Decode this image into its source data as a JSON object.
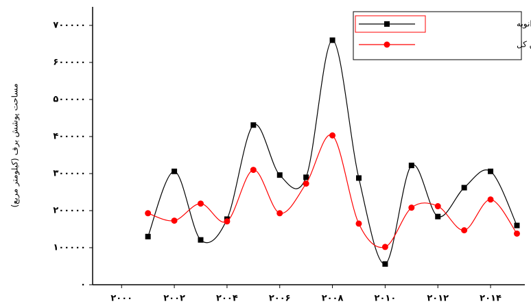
{
  "chart_data": {
    "type": "line",
    "y_label": "مساحت پوشش برف (کیلومتر مربع)",
    "x": [
      2001,
      2002,
      2003,
      2004,
      2005,
      2006,
      2007,
      2008,
      2009,
      2010,
      2011,
      2012,
      2013,
      2014,
      2015
    ],
    "series": [
      {
        "name": "مشت روزه‌دوم ماه ژانویه",
        "color": "#000000",
        "marker": "square",
        "values": [
          130000,
          306000,
          121000,
          177000,
          431000,
          296000,
          290000,
          660000,
          288000,
          56000,
          322000,
          184000,
          262000,
          306000,
          160000
        ]
      },
      {
        "name": "میانگین کل",
        "color": "#ff0000",
        "marker": "circle",
        "values": [
          193000,
          173000,
          219000,
          171000,
          310000,
          193000,
          273000,
          403000,
          165000,
          102000,
          208000,
          212000,
          147000,
          230000,
          138000
        ]
      }
    ],
    "xlim": [
      1998.9,
      2015.3
    ],
    "ylim": [
      0,
      750000
    ],
    "xticks": [
      {
        "value": 2000,
        "label": "۲۰۰۰"
      },
      {
        "value": 2002,
        "label": "۲۰۰۲"
      },
      {
        "value": 2004,
        "label": "۲۰۰۴"
      },
      {
        "value": 2006,
        "label": "۲۰۰۶"
      },
      {
        "value": 2008,
        "label": "۲۰۰۸"
      },
      {
        "value": 2010,
        "label": "۲۰۱۰"
      },
      {
        "value": 2012,
        "label": "۲۰۱۲"
      },
      {
        "value": 2014,
        "label": "۲۰۱۴"
      }
    ],
    "yticks": [
      {
        "value": 0,
        "label": "۰"
      },
      {
        "value": 100000,
        "label": "۱۰۰۰۰۰"
      },
      {
        "value": 200000,
        "label": "۲۰۰۰۰۰"
      },
      {
        "value": 300000,
        "label": "۳۰۰۰۰۰"
      },
      {
        "value": 400000,
        "label": "۴۰۰۰۰۰"
      },
      {
        "value": 500000,
        "label": "۵۰۰۰۰۰"
      },
      {
        "value": 600000,
        "label": "۶۰۰۰۰۰"
      },
      {
        "value": 700000,
        "label": "۷۰۰۰۰۰"
      }
    ],
    "legend": "upper right"
  }
}
